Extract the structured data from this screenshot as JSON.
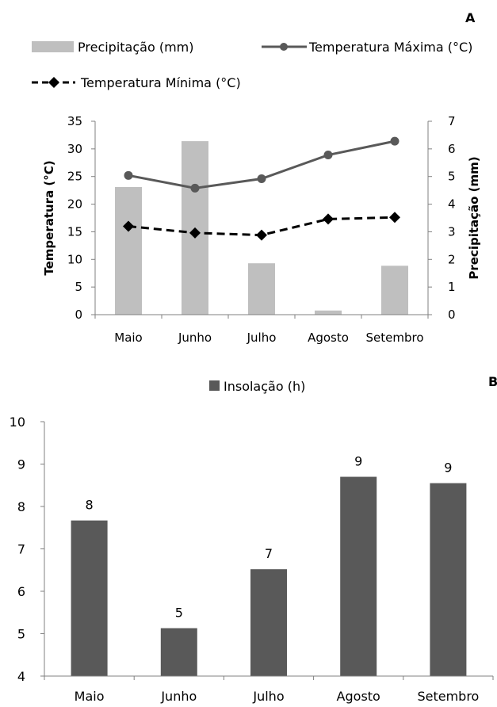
{
  "chart_data": [
    {
      "type": "bar+line",
      "panel_label": "A",
      "categories": [
        "Maio",
        "Junho",
        "Julho",
        "Agosto",
        "Setembro"
      ],
      "series": [
        {
          "name": "Precipitação (mm)",
          "type": "bar",
          "axis": "right",
          "color": "#bfbfbf",
          "values": [
            4.62,
            6.28,
            1.86,
            0.15,
            1.77
          ]
        },
        {
          "name": "Temperatura Máxima (°C)",
          "type": "line",
          "axis": "left",
          "color": "#595959",
          "marker": "circle",
          "values": [
            25.2,
            22.9,
            24.6,
            28.9,
            31.4
          ]
        },
        {
          "name": "Temperatura Mínima (°C)",
          "type": "line",
          "axis": "left",
          "color": "#000000",
          "marker": "diamond",
          "dashed": true,
          "values": [
            16.0,
            14.8,
            14.4,
            17.3,
            17.6
          ]
        }
      ],
      "ylabel": "Temperatura (°C)",
      "ylim": [
        0,
        35
      ],
      "yticks": [
        "0",
        "5",
        "10",
        "15",
        "20",
        "25",
        "30",
        "35"
      ],
      "y2label": "Precipitação (mm)",
      "y2lim": [
        0,
        7
      ],
      "y2ticks": [
        "0",
        "1",
        "2",
        "3",
        "4",
        "5",
        "6",
        "7"
      ],
      "legend": "top"
    },
    {
      "type": "bar",
      "panel_label": "B",
      "categories": [
        "Maio",
        "Junho",
        "Julho",
        "Agosto",
        "Setembro"
      ],
      "series": [
        {
          "name": "Insolação (h)",
          "color": "#595959",
          "values": [
            7.67,
            5.13,
            6.52,
            8.7,
            8.55
          ],
          "data_labels": [
            "8",
            "5",
            "7",
            "9",
            "9"
          ]
        }
      ],
      "ylim": [
        4,
        10
      ],
      "yticks": [
        "4",
        "5",
        "6",
        "7",
        "8",
        "9",
        "10"
      ],
      "legend": "top"
    }
  ]
}
